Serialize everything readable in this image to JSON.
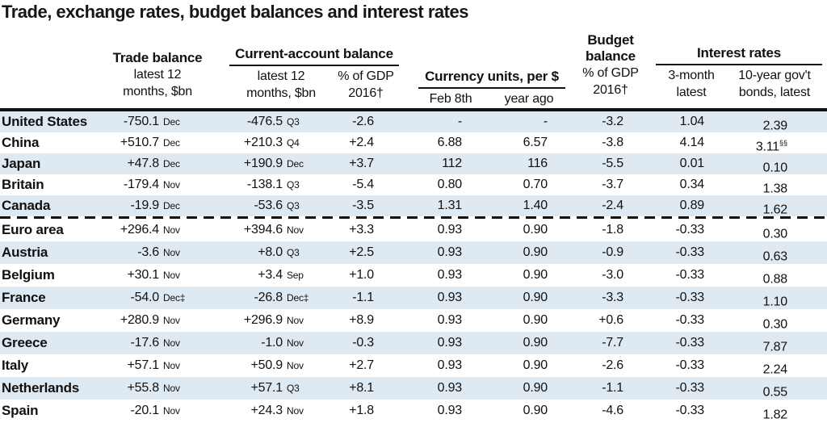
{
  "title": "Trade, exchange rates, budget balances and interest rates",
  "colors": {
    "stripe": "#dfe9f1",
    "rule": "#111111",
    "text": "#111111"
  },
  "header": {
    "trade": {
      "label": "Trade balance",
      "sub1": "latest 12",
      "sub2": "months, $bn"
    },
    "current_account": {
      "label": "Current-account balance",
      "col1_line1": "latest 12",
      "col1_line2": "months, $bn",
      "col2_line1": "% of GDP",
      "col2_line2": "2016†"
    },
    "currency": {
      "label": "Currency units, per $",
      "col1": "Feb 8th",
      "col2": "year ago"
    },
    "budget": {
      "line1": "Budget",
      "line2": "balance",
      "line3": "% of GDP",
      "line4": "2016†"
    },
    "interest": {
      "label": "Interest rates",
      "col1_line1": "3-month",
      "col1_line2": "latest",
      "col2_line1": "10-year gov't",
      "col2_line2": "bonds, latest"
    }
  },
  "chart_data": {
    "type": "table",
    "title": "Trade, exchange rates, budget balances and interest rates",
    "columns": [
      "Country",
      "Trade balance latest 12 months, $bn",
      "Trade balance date",
      "Current-account balance latest 12 months, $bn",
      "Current-account date",
      "Current-account % of GDP 2016†",
      "Currency units per $, Feb 8th",
      "Currency units per $, year ago",
      "Budget balance % of GDP 2016†",
      "3-month interest rate, latest",
      "10-year gov't bonds, latest"
    ],
    "divider_after_row": 4,
    "rows": [
      {
        "country": "United States",
        "trade": "-750.1",
        "trade_date": "Dec",
        "ca": "-476.5",
        "ca_date": "Q3",
        "ca_gdp": "-2.6",
        "feb8": "-",
        "year_ago": "-",
        "budget": "-3.2",
        "m3": "1.04",
        "y10": "2.39",
        "y10_sup": ""
      },
      {
        "country": "China",
        "trade": "+510.7",
        "trade_date": "Dec",
        "ca": "+210.3",
        "ca_date": "Q4",
        "ca_gdp": "+2.4",
        "feb8": "6.88",
        "year_ago": "6.57",
        "budget": "-3.8",
        "m3": "4.14",
        "y10": "3.11",
        "y10_sup": "§§"
      },
      {
        "country": "Japan",
        "trade": "+47.8",
        "trade_date": "Dec",
        "ca": "+190.9",
        "ca_date": "Dec",
        "ca_gdp": "+3.7",
        "feb8": "112",
        "year_ago": "116",
        "budget": "-5.5",
        "m3": "0.01",
        "y10": "0.10",
        "y10_sup": ""
      },
      {
        "country": "Britain",
        "trade": "-179.4",
        "trade_date": "Nov",
        "ca": "-138.1",
        "ca_date": "Q3",
        "ca_gdp": "-5.4",
        "feb8": "0.80",
        "year_ago": "0.70",
        "budget": "-3.7",
        "m3": "0.34",
        "y10": "1.38",
        "y10_sup": ""
      },
      {
        "country": "Canada",
        "trade": "-19.9",
        "trade_date": "Dec",
        "ca": "-53.6",
        "ca_date": "Q3",
        "ca_gdp": "-3.5",
        "feb8": "1.31",
        "year_ago": "1.40",
        "budget": "-2.4",
        "m3": "0.89",
        "y10": "1.62",
        "y10_sup": ""
      },
      {
        "country": "Euro area",
        "trade": "+296.4",
        "trade_date": "Nov",
        "ca": "+394.6",
        "ca_date": "Nov",
        "ca_gdp": "+3.3",
        "feb8": "0.93",
        "year_ago": "0.90",
        "budget": "-1.8",
        "m3": "-0.33",
        "y10": "0.30",
        "y10_sup": ""
      },
      {
        "country": "Austria",
        "trade": "-3.6",
        "trade_date": "Nov",
        "ca": "+8.0",
        "ca_date": "Q3",
        "ca_gdp": "+2.5",
        "feb8": "0.93",
        "year_ago": "0.90",
        "budget": "-0.9",
        "m3": "-0.33",
        "y10": "0.63",
        "y10_sup": ""
      },
      {
        "country": "Belgium",
        "trade": "+30.1",
        "trade_date": "Nov",
        "ca": "+3.4",
        "ca_date": "Sep",
        "ca_gdp": "+1.0",
        "feb8": "0.93",
        "year_ago": "0.90",
        "budget": "-3.0",
        "m3": "-0.33",
        "y10": "0.88",
        "y10_sup": ""
      },
      {
        "country": "France",
        "trade": "-54.0",
        "trade_date": "Dec‡",
        "ca": "-26.8",
        "ca_date": "Dec‡",
        "ca_gdp": "-1.1",
        "feb8": "0.93",
        "year_ago": "0.90",
        "budget": "-3.3",
        "m3": "-0.33",
        "y10": "1.10",
        "y10_sup": ""
      },
      {
        "country": "Germany",
        "trade": "+280.9",
        "trade_date": "Nov",
        "ca": "+296.9",
        "ca_date": "Nov",
        "ca_gdp": "+8.9",
        "feb8": "0.93",
        "year_ago": "0.90",
        "budget": "+0.6",
        "m3": "-0.33",
        "y10": "0.30",
        "y10_sup": ""
      },
      {
        "country": "Greece",
        "trade": "-17.6",
        "trade_date": "Nov",
        "ca": "-1.0",
        "ca_date": "Nov",
        "ca_gdp": "-0.3",
        "feb8": "0.93",
        "year_ago": "0.90",
        "budget": "-7.7",
        "m3": "-0.33",
        "y10": "7.87",
        "y10_sup": ""
      },
      {
        "country": "Italy",
        "trade": "+57.1",
        "trade_date": "Nov",
        "ca": "+50.9",
        "ca_date": "Nov",
        "ca_gdp": "+2.7",
        "feb8": "0.93",
        "year_ago": "0.90",
        "budget": "-2.6",
        "m3": "-0.33",
        "y10": "2.24",
        "y10_sup": ""
      },
      {
        "country": "Netherlands",
        "trade": "+55.8",
        "trade_date": "Nov",
        "ca": "+57.1",
        "ca_date": "Q3",
        "ca_gdp": "+8.1",
        "feb8": "0.93",
        "year_ago": "0.90",
        "budget": "-1.1",
        "m3": "-0.33",
        "y10": "0.55",
        "y10_sup": ""
      },
      {
        "country": "Spain",
        "trade": "-20.1",
        "trade_date": "Nov",
        "ca": "+24.3",
        "ca_date": "Nov",
        "ca_gdp": "+1.8",
        "feb8": "0.93",
        "year_ago": "0.90",
        "budget": "-4.6",
        "m3": "-0.33",
        "y10": "1.82",
        "y10_sup": ""
      }
    ]
  }
}
